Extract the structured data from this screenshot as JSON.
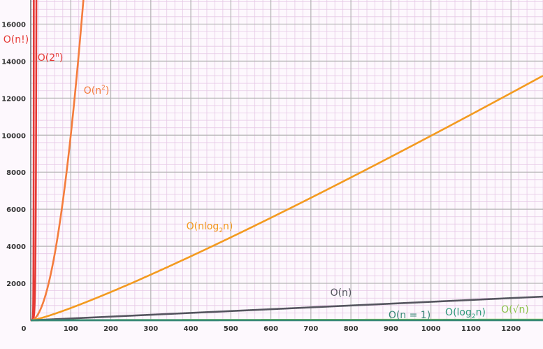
{
  "chart_data": {
    "type": "line",
    "title": "",
    "xlabel": "",
    "ylabel": "",
    "xlim": [
      0,
      1280
    ],
    "ylim": [
      0,
      17300
    ],
    "x_ticks": [
      0,
      100,
      200,
      300,
      400,
      500,
      600,
      700,
      800,
      900,
      1000,
      1100,
      1200
    ],
    "y_ticks": [
      2000,
      4000,
      6000,
      8000,
      10000,
      12000,
      14000,
      16000
    ],
    "grid": true,
    "series": [
      {
        "id": "factorial",
        "color": "#e53935",
        "fn": "factorial"
      },
      {
        "id": "exp2",
        "color": "#e53935",
        "fn": "exp2"
      },
      {
        "id": "quadratic",
        "color": "#f47c3c",
        "fn": "quadratic"
      },
      {
        "id": "nlogn",
        "color": "#f39a1f",
        "fn": "nlogn"
      },
      {
        "id": "linear",
        "color": "#55555f",
        "fn": "linear"
      },
      {
        "id": "sqrt",
        "color": "#8bc34a",
        "fn": "sqrt"
      },
      {
        "id": "log",
        "color": "#2e9a7a",
        "fn": "log"
      },
      {
        "id": "constant",
        "color": "#3a8a78",
        "fn": "constant"
      }
    ],
    "annotations": [
      {
        "id": "factorial",
        "base": "O(n!)",
        "color": "#e53935"
      },
      {
        "id": "exp2",
        "base": "O(2",
        "sup": "n",
        "tail": ")",
        "color": "#e53935"
      },
      {
        "id": "quadratic",
        "base": "O(n",
        "sup": "2",
        "tail": ")",
        "color": "#f47c3c"
      },
      {
        "id": "nlogn",
        "base": "O(nlog",
        "sub": "2",
        "tail": "n)",
        "color": "#f39a1f"
      },
      {
        "id": "linear",
        "base": "O(n)",
        "color": "#55555f"
      },
      {
        "id": "constant",
        "base": "O(n = 1)",
        "color": "#3a8a78"
      },
      {
        "id": "log",
        "base": "O(log",
        "sub": "2",
        "tail": "n)",
        "color": "#2e9a7a"
      },
      {
        "id": "sqrt",
        "base": "O(√n)",
        "color": "#8bc34a"
      }
    ]
  }
}
